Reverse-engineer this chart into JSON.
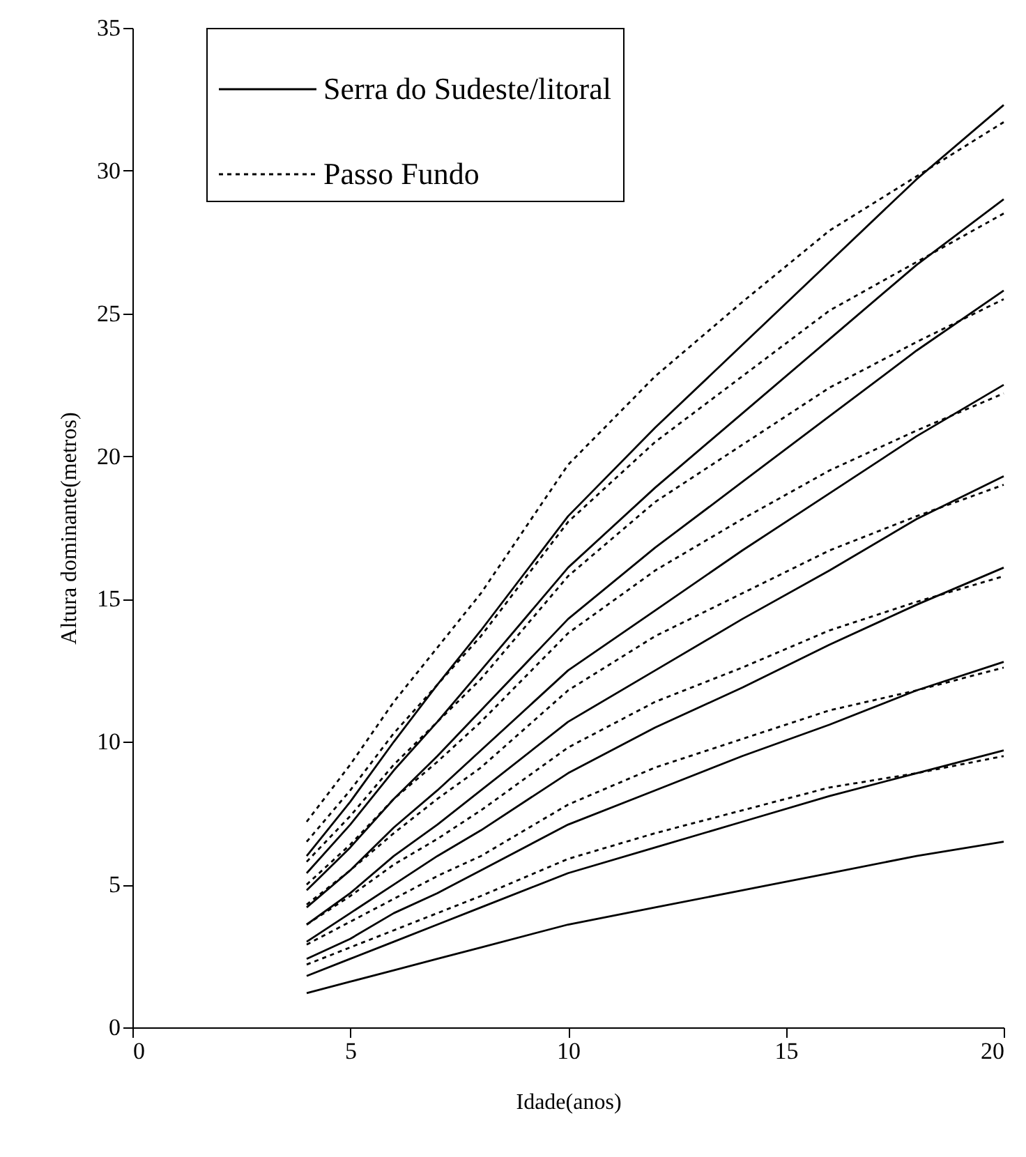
{
  "chart_data": {
    "type": "line",
    "xlabel": "Idade(anos)",
    "ylabel": "Altura dominante(metros)",
    "xlim": [
      0,
      20
    ],
    "xticks": [
      0,
      5,
      10,
      15,
      20
    ],
    "ylim": [
      0,
      35
    ],
    "yticks": [
      0,
      5,
      10,
      15,
      20,
      25,
      30,
      35
    ],
    "x": [
      4,
      5,
      6,
      7,
      8,
      10,
      12,
      14,
      16,
      18,
      20
    ],
    "grid": false,
    "legend": "top left",
    "marker": "none",
    "series": [
      {
        "name": "Serra do Sudeste/litoral",
        "color": "#000000",
        "line_style": "solid",
        "values": [
          6.0,
          7.9,
          10.0,
          12.0,
          13.9,
          17.9,
          21.0,
          23.9,
          26.8,
          29.7,
          32.3
        ]
      },
      {
        "color": "#000000",
        "line_style": "solid",
        "values": [
          5.4,
          7.1,
          9.0,
          10.7,
          12.5,
          16.1,
          18.9,
          21.5,
          24.1,
          26.7,
          29.0
        ]
      },
      {
        "color": "#000000",
        "line_style": "solid",
        "values": [
          4.8,
          6.3,
          8.0,
          9.5,
          11.1,
          14.3,
          16.8,
          19.1,
          21.4,
          23.7,
          25.8
        ]
      },
      {
        "color": "#000000",
        "line_style": "solid",
        "values": [
          4.2,
          5.5,
          7.0,
          8.3,
          9.7,
          12.5,
          14.6,
          16.7,
          18.7,
          20.7,
          22.5
        ]
      },
      {
        "color": "#000000",
        "line_style": "solid",
        "values": [
          3.6,
          4.7,
          6.0,
          7.1,
          8.3,
          10.7,
          12.5,
          14.3,
          16.0,
          17.8,
          19.3
        ]
      },
      {
        "color": "#000000",
        "line_style": "solid",
        "values": [
          3.0,
          4.0,
          5.0,
          6.0,
          6.9,
          8.9,
          10.5,
          11.9,
          13.4,
          14.8,
          16.1
        ]
      },
      {
        "color": "#000000",
        "line_style": "solid",
        "values": [
          2.4,
          3.1,
          4.0,
          4.7,
          5.5,
          7.1,
          8.3,
          9.5,
          10.6,
          11.8,
          12.8
        ]
      },
      {
        "color": "#000000",
        "line_style": "solid",
        "values": [
          1.8,
          2.4,
          3.0,
          3.6,
          4.2,
          5.4,
          6.3,
          7.2,
          8.1,
          8.9,
          9.7
        ]
      },
      {
        "color": "#000000",
        "line_style": "solid",
        "values": [
          1.2,
          1.6,
          2.0,
          2.4,
          2.8,
          3.6,
          4.2,
          4.8,
          5.4,
          6.0,
          6.5
        ]
      },
      {
        "name": "Passo Fundo",
        "color": "#000000",
        "line_style": "dotted",
        "values": [
          7.2,
          9.2,
          11.4,
          13.3,
          15.2,
          19.7,
          22.8,
          25.4,
          27.9,
          29.8,
          31.7
        ]
      },
      {
        "color": "#000000",
        "line_style": "dotted",
        "values": [
          6.5,
          8.3,
          10.3,
          12.0,
          13.7,
          17.7,
          20.5,
          22.8,
          25.1,
          26.8,
          28.5
        ]
      },
      {
        "color": "#000000",
        "line_style": "dotted",
        "values": [
          5.8,
          7.4,
          9.2,
          10.7,
          12.2,
          15.8,
          18.4,
          20.4,
          22.4,
          24.0,
          25.5
        ]
      },
      {
        "color": "#000000",
        "line_style": "dotted",
        "values": [
          5.0,
          6.4,
          8.0,
          9.3,
          10.7,
          13.8,
          16.0,
          17.8,
          19.5,
          20.9,
          22.2
        ]
      },
      {
        "color": "#000000",
        "line_style": "dotted",
        "values": [
          4.3,
          5.5,
          6.8,
          8.0,
          9.1,
          11.8,
          13.7,
          15.2,
          16.7,
          17.9,
          19.0
        ]
      },
      {
        "color": "#000000",
        "line_style": "dotted",
        "values": [
          3.6,
          4.6,
          5.7,
          6.6,
          7.6,
          9.8,
          11.4,
          12.6,
          13.9,
          14.9,
          15.8
        ]
      },
      {
        "color": "#000000",
        "line_style": "dotted",
        "values": [
          2.9,
          3.7,
          4.5,
          5.3,
          6.0,
          7.8,
          9.1,
          10.1,
          11.1,
          11.8,
          12.6
        ]
      },
      {
        "color": "#000000",
        "line_style": "dotted",
        "values": [
          2.2,
          2.8,
          3.4,
          4.0,
          4.6,
          5.9,
          6.8,
          7.6,
          8.4,
          8.9,
          9.5
        ]
      }
    ]
  }
}
